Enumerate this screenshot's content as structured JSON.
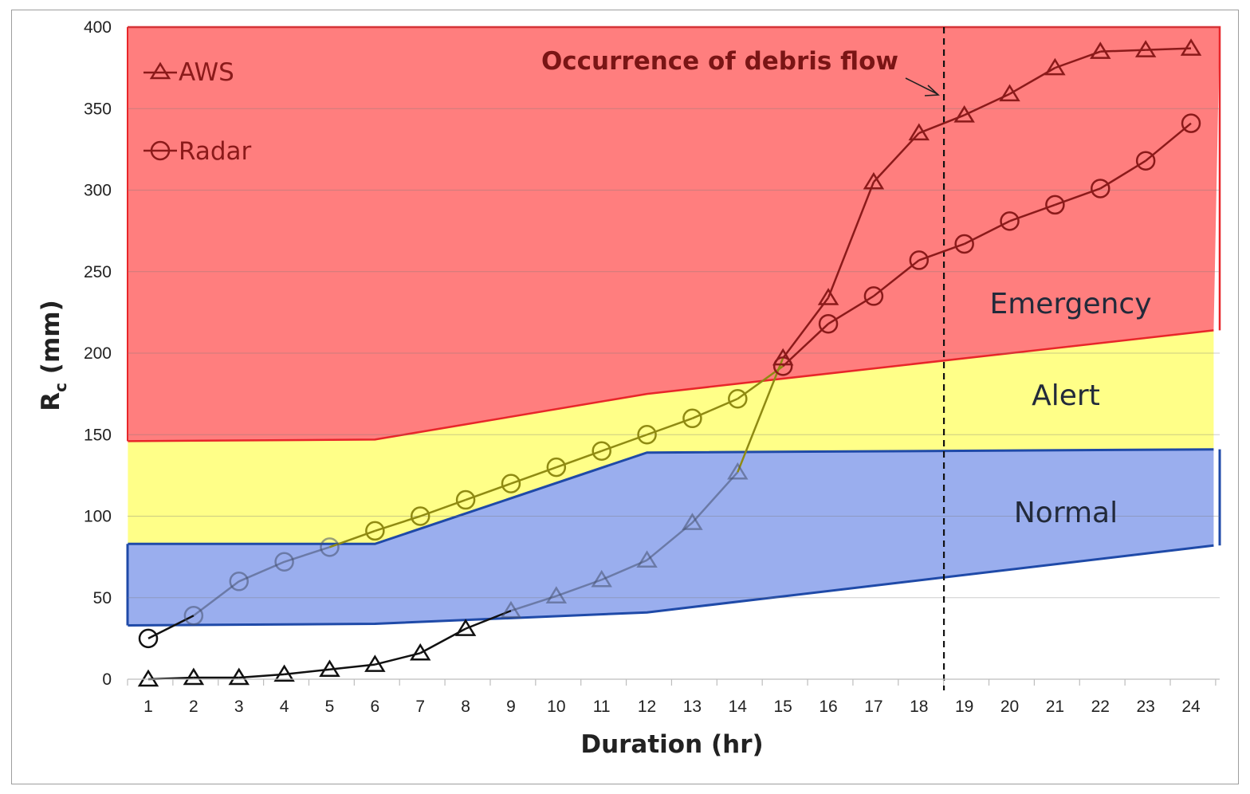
{
  "chart_data": {
    "type": "line",
    "xlabel": "Duration (hr)",
    "ylabel_main": "R",
    "ylabel_sub": "c",
    "ylabel_unit": " (mm)",
    "x": [
      1,
      2,
      3,
      4,
      5,
      6,
      7,
      8,
      9,
      10,
      11,
      12,
      13,
      14,
      15,
      16,
      17,
      18,
      19,
      20,
      21,
      22,
      23,
      24
    ],
    "x_tick_labels": [
      "1",
      "2",
      "3",
      "4",
      "5",
      "6",
      "7",
      "8",
      "9",
      "10",
      "11",
      "12",
      "13",
      "14",
      "15",
      "16",
      "17",
      "18",
      "19",
      "20",
      "21",
      "22",
      "23",
      "24"
    ],
    "y_tick_labels": [
      "0",
      "50",
      "100",
      "150",
      "200",
      "250",
      "300",
      "350",
      "400"
    ],
    "ylim": [
      0,
      400
    ],
    "xlim": [
      0.55,
      24.5
    ],
    "grid": "horizontal",
    "legend_position": "top-left",
    "series": [
      {
        "name": "AWS",
        "marker": "triangle",
        "color": "#8b1a1a",
        "values": [
          0,
          1,
          1,
          3,
          6,
          9,
          16,
          31,
          42,
          51,
          61,
          73,
          96,
          127,
          197,
          234,
          305,
          335,
          346,
          359,
          375,
          385,
          386,
          387
        ]
      },
      {
        "name": "Radar",
        "marker": "circle",
        "color": "#8b1a1a",
        "values": [
          25,
          39,
          60,
          72,
          81,
          91,
          100,
          110,
          120,
          130,
          140,
          150,
          160,
          172,
          192,
          218,
          235,
          257,
          267,
          281,
          291,
          301,
          318,
          341
        ]
      }
    ],
    "zones": {
      "emergency": {
        "label": "Emergency",
        "color": "#ff7e7e",
        "edge": "#e8262a",
        "lower_x": [
          0.55,
          6,
          12,
          24.5
        ],
        "lower_y": [
          146,
          147,
          175,
          214
        ]
      },
      "alert": {
        "label": "Alert",
        "color": "#ffff88",
        "lower_x": [
          0.55,
          6,
          12,
          24.5
        ],
        "lower_y": [
          83,
          83,
          139,
          141
        ]
      },
      "normal": {
        "label": "Normal",
        "color": "#9aaeee",
        "edge": "#1f4aa8",
        "lower_x": [
          0.55,
          6,
          12,
          24.5
        ],
        "lower_y": [
          33,
          34,
          41,
          82
        ]
      }
    },
    "event_line_x": 18.55,
    "annotation": "Occurrence of debris flow"
  }
}
